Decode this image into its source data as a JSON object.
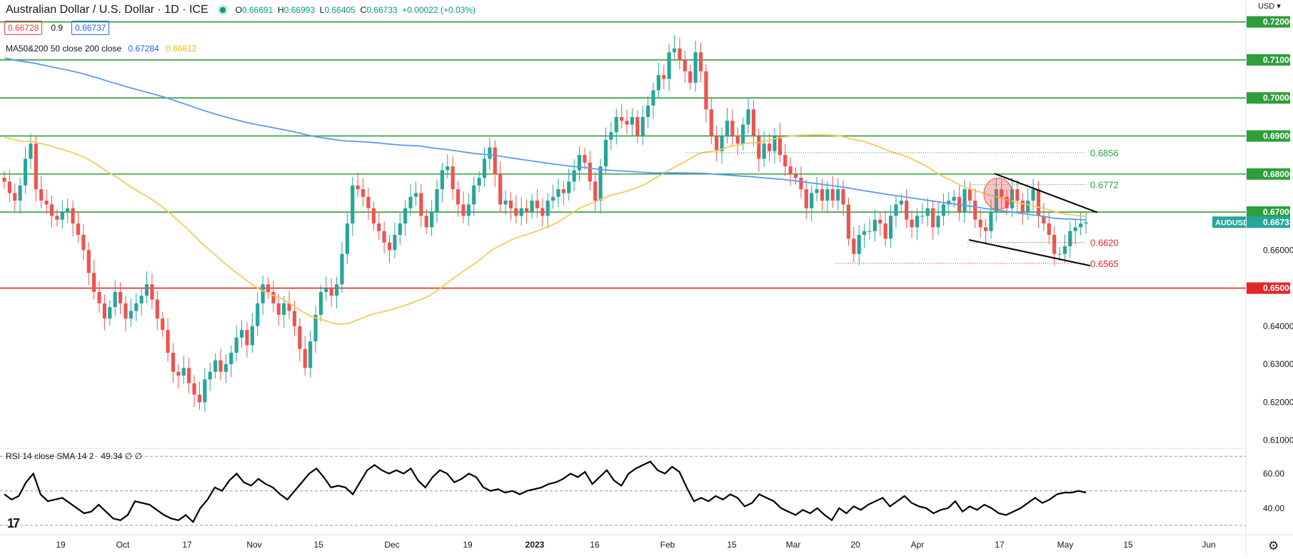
{
  "header": {
    "title": "Australian Dollar / U.S. Dollar · 1D · ICE",
    "open_label": "O",
    "open": "0.66691",
    "high_label": "H",
    "high": "0.66993",
    "low_label": "L",
    "low": "0.66405",
    "close_label": "C",
    "close": "0.66733",
    "change": "+0.00022 (+0.03%)",
    "bid": "0.66728",
    "spread": "0.9",
    "ask": "0.66737"
  },
  "ma_legend": {
    "label": "MA50&200 50 close 200 close",
    "ma50_value": "0.67284",
    "ma200_value": "0.66812"
  },
  "rsi_legend": {
    "label": "RSI 14 close SMA 14 2",
    "value": "49.34 ∅ ∅"
  },
  "currency_label": "USD",
  "logo_text": "17",
  "colors": {
    "up": "#26a69a",
    "down": "#ef5350",
    "ma200": "#5b9bf0",
    "ma50": "#f7c95c",
    "support": "#2e9e3a",
    "key_level": "#e32626",
    "trend": "#000000"
  },
  "chart_data": {
    "type": "candlestick",
    "symbol": "AUDUSD",
    "last_price": "0.66733",
    "ylim": [
      0.6075,
      0.7235
    ],
    "y_ticks": [
      "0.72000",
      "0.71000",
      "0.70000",
      "0.69000",
      "0.68000",
      "0.67000",
      "0.66000",
      "0.65000",
      "0.64000",
      "0.63000",
      "0.62000",
      "0.61000"
    ],
    "x_ticks": [
      "19",
      "Oct",
      "17",
      "Nov",
      "15",
      "Dec",
      "19",
      "2023",
      "16",
      "Feb",
      "15",
      "Mar",
      "20",
      "Apr",
      "17",
      "May",
      "15",
      "Jun"
    ],
    "horizontal_levels": [
      "0.72000",
      "0.71000",
      "0.70000",
      "0.69000",
      "0.68000",
      "0.67000",
      "0.65000"
    ],
    "annotations": [
      {
        "text": "0.6856",
        "value": 0.6856,
        "color": "green"
      },
      {
        "text": "0.6772",
        "value": 0.6772,
        "color": "green"
      },
      {
        "text": "0.6620",
        "value": 0.662,
        "color": "red"
      },
      {
        "text": "0.6565",
        "value": 0.6565,
        "color": "red"
      }
    ],
    "candle_closes": [
      0.678,
      0.675,
      0.673,
      0.677,
      0.684,
      0.688,
      0.676,
      0.673,
      0.672,
      0.669,
      0.668,
      0.67,
      0.671,
      0.667,
      0.664,
      0.66,
      0.654,
      0.649,
      0.646,
      0.642,
      0.645,
      0.649,
      0.646,
      0.642,
      0.644,
      0.646,
      0.648,
      0.651,
      0.647,
      0.642,
      0.639,
      0.633,
      0.628,
      0.627,
      0.629,
      0.625,
      0.622,
      0.62,
      0.626,
      0.628,
      0.631,
      0.628,
      0.63,
      0.633,
      0.637,
      0.639,
      0.635,
      0.64,
      0.646,
      0.651,
      0.649,
      0.646,
      0.643,
      0.646,
      0.644,
      0.64,
      0.634,
      0.629,
      0.636,
      0.643,
      0.649,
      0.65,
      0.648,
      0.651,
      0.659,
      0.667,
      0.677,
      0.676,
      0.674,
      0.671,
      0.667,
      0.665,
      0.662,
      0.66,
      0.664,
      0.667,
      0.671,
      0.674,
      0.675,
      0.669,
      0.666,
      0.67,
      0.676,
      0.681,
      0.682,
      0.676,
      0.672,
      0.669,
      0.672,
      0.677,
      0.679,
      0.684,
      0.687,
      0.68,
      0.672,
      0.673,
      0.671,
      0.669,
      0.671,
      0.67,
      0.673,
      0.671,
      0.669,
      0.673,
      0.674,
      0.676,
      0.675,
      0.678,
      0.681,
      0.685,
      0.683,
      0.678,
      0.673,
      0.682,
      0.689,
      0.691,
      0.695,
      0.694,
      0.693,
      0.695,
      0.69,
      0.695,
      0.698,
      0.702,
      0.706,
      0.705,
      0.712,
      0.713,
      0.71,
      0.707,
      0.704,
      0.712,
      0.707,
      0.697,
      0.69,
      0.686,
      0.69,
      0.694,
      0.69,
      0.688,
      0.693,
      0.697,
      0.69,
      0.684,
      0.688,
      0.686,
      0.69,
      0.685,
      0.682,
      0.68,
      0.679,
      0.676,
      0.671,
      0.675,
      0.676,
      0.673,
      0.676,
      0.673,
      0.676,
      0.672,
      0.663,
      0.659,
      0.664,
      0.665,
      0.665,
      0.668,
      0.667,
      0.663,
      0.669,
      0.672,
      0.673,
      0.668,
      0.666,
      0.669,
      0.669,
      0.671,
      0.666,
      0.669,
      0.672,
      0.673,
      0.674,
      0.67,
      0.676,
      0.673,
      0.668,
      0.666,
      0.665,
      0.67,
      0.676,
      0.674,
      0.671,
      0.676,
      0.673,
      0.67,
      0.673,
      0.676,
      0.669,
      0.667,
      0.664,
      0.659,
      0.659,
      0.661,
      0.665,
      0.666,
      0.667,
      0.6673
    ]
  },
  "rsi_data": {
    "ylim": [
      25,
      73
    ],
    "y_ticks": [
      "60.00",
      "40.00"
    ],
    "overbought": 70,
    "oversold": 30,
    "mid": 50,
    "values": [
      48,
      45,
      47,
      55,
      60,
      48,
      44,
      45,
      46,
      43,
      40,
      37,
      38,
      42,
      38,
      34,
      33,
      36,
      44,
      43,
      42,
      39,
      36,
      34,
      33,
      36,
      32,
      40,
      45,
      52,
      50,
      56,
      60,
      55,
      53,
      57,
      54,
      52,
      48,
      45,
      50,
      55,
      60,
      63,
      58,
      52,
      53,
      52,
      48,
      55,
      62,
      65,
      62,
      60,
      62,
      60,
      63,
      56,
      52,
      58,
      62,
      60,
      55,
      57,
      60,
      58,
      52,
      50,
      51,
      49,
      50,
      48,
      50,
      51,
      52,
      54,
      55,
      57,
      60,
      58,
      61,
      54,
      58,
      62,
      56,
      53,
      60,
      63,
      65,
      67,
      62,
      60,
      64,
      61,
      52,
      44,
      46,
      44,
      47,
      45,
      48,
      46,
      41,
      43,
      48,
      46,
      44,
      40,
      38,
      36,
      39,
      37,
      40,
      36,
      33,
      40,
      37,
      41,
      39,
      42,
      44,
      46,
      41,
      44,
      47,
      43,
      41,
      40,
      37,
      39,
      40,
      44,
      38,
      41,
      39,
      42,
      40,
      37,
      36,
      38,
      40,
      43,
      46,
      43,
      45,
      48,
      49,
      49,
      50,
      49
    ],
    "current": "49.34"
  }
}
